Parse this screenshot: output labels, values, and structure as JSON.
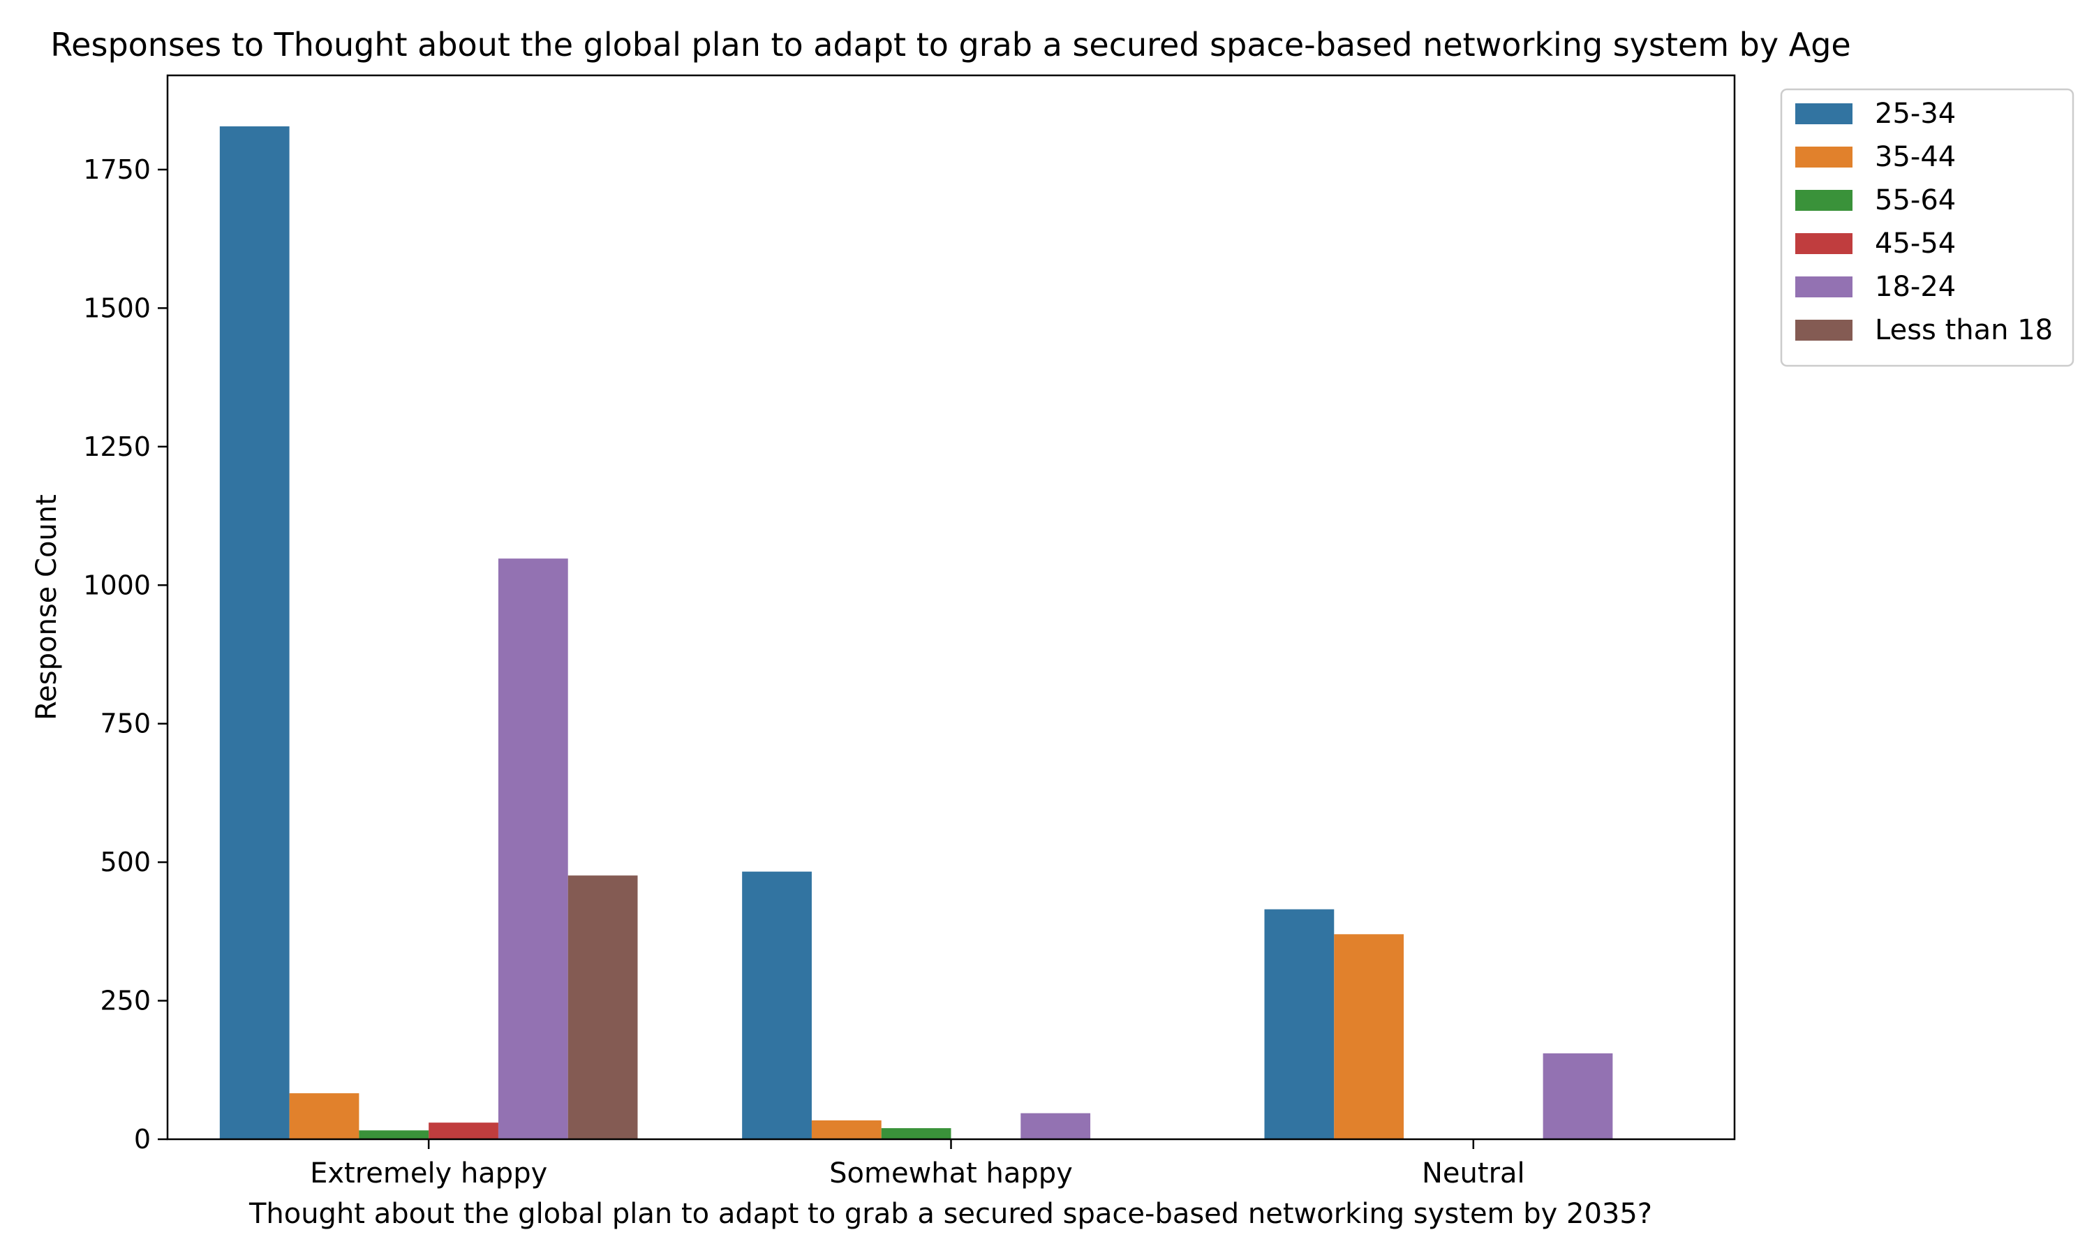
{
  "chart_data": {
    "type": "bar",
    "title": "Responses to Thought about the global plan to adapt to grab a secured space-based networking system by Age",
    "xlabel": "Thought about the global plan to adapt to grab a secured space-based networking system by 2035?",
    "ylabel": "Response Count",
    "categories": [
      "Extremely happy",
      "Somewhat happy",
      "Neutral"
    ],
    "series": [
      {
        "name": "25-34",
        "color": "#3274a1",
        "values": [
          1828,
          483,
          415
        ]
      },
      {
        "name": "35-44",
        "color": "#e1812c",
        "values": [
          83,
          34,
          370
        ]
      },
      {
        "name": "55-64",
        "color": "#3a923a",
        "values": [
          16,
          20,
          0
        ]
      },
      {
        "name": "45-54",
        "color": "#c03d3e",
        "values": [
          30,
          0,
          0
        ]
      },
      {
        "name": "18-24",
        "color": "#9372b2",
        "values": [
          1048,
          47,
          155
        ]
      },
      {
        "name": "Less than 18",
        "color": "#845b53",
        "values": [
          476,
          0,
          0
        ]
      }
    ],
    "yticks": [
      0,
      250,
      500,
      750,
      1000,
      1250,
      1500,
      1750
    ],
    "ylim": [
      0,
      1920
    ],
    "grid": false,
    "legend_position": "outside upper right"
  }
}
